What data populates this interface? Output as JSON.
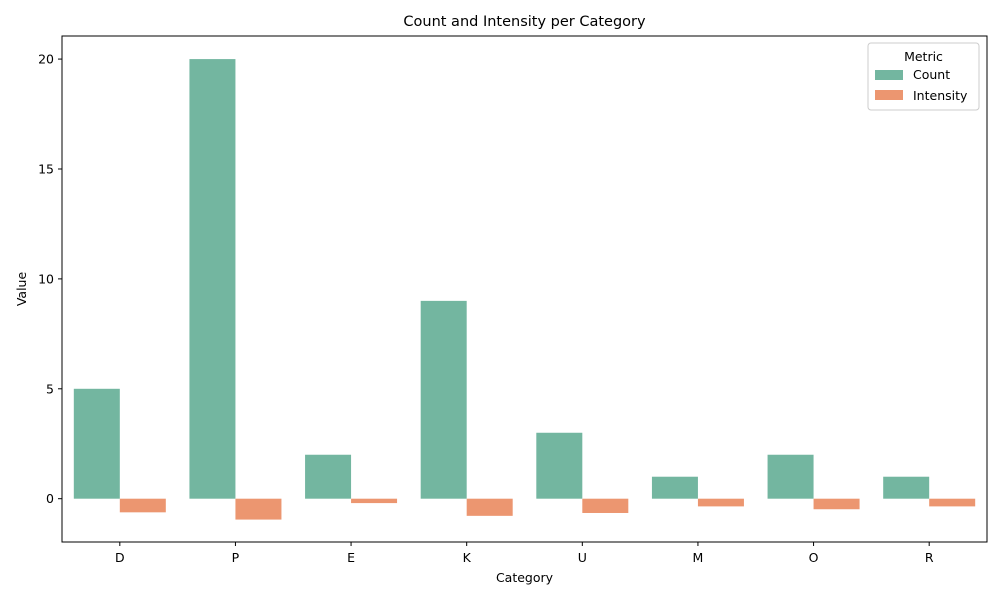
{
  "chart_data": {
    "type": "bar",
    "title": "Count and Intensity per Category",
    "xlabel": "Category",
    "ylabel": "Value",
    "categories": [
      "D",
      "P",
      "E",
      "K",
      "U",
      "M",
      "O",
      "R"
    ],
    "series": [
      {
        "name": "Count",
        "values": [
          5,
          20,
          2,
          9,
          3,
          1,
          2,
          1
        ],
        "color": "#73b6a0"
      },
      {
        "name": "Intensity",
        "values": [
          -0.62,
          -0.95,
          -0.2,
          -0.78,
          -0.65,
          -0.35,
          -0.48,
          -0.35
        ],
        "color": "#ec9670"
      }
    ],
    "ylim": [
      -1.97,
      21.05
    ],
    "yticks": [
      0,
      5,
      10,
      15,
      20
    ],
    "grid": false,
    "legend": {
      "title": "Metric",
      "placement": "top-right"
    }
  }
}
